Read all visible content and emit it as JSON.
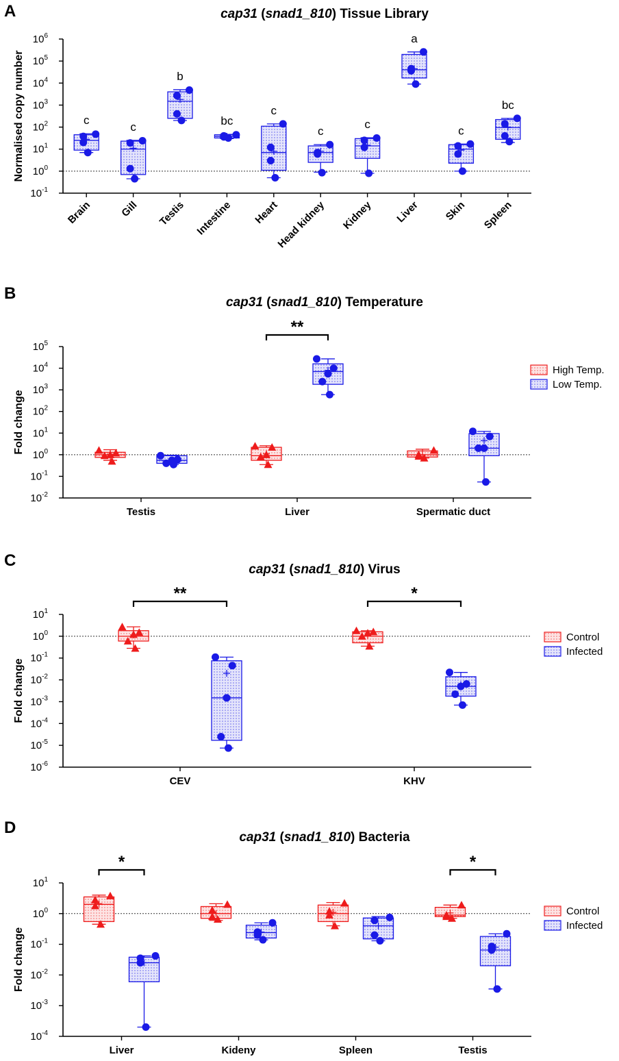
{
  "figure": {
    "panel_labels": [
      "A",
      "B",
      "C",
      "D"
    ]
  },
  "colors": {
    "red": "#ee1c1c",
    "blue": "#1a1ae6",
    "axis": "#000000"
  },
  "chart_data": [
    {
      "type": "box",
      "panel": "A",
      "title_gene": "cap31",
      "title_id": "snad1_810",
      "title_suffix": "Tissue Library",
      "ylabel": "Normalised copy number",
      "yscale": "log",
      "ylim_exp": [
        -1,
        6
      ],
      "reference_line": 1,
      "categories": [
        "Brain",
        "Gill",
        "Testis",
        "Intestine",
        "Heart",
        "Head kidney",
        "Kidney",
        "Liver",
        "Skin",
        "Spleen"
      ],
      "letters": [
        "c",
        "c",
        "b",
        "bc",
        "c",
        "c",
        "c",
        "a",
        "c",
        "bc"
      ],
      "series": [
        {
          "name": "Tissue",
          "color": "blue",
          "marker": "circle",
          "boxes": [
            {
              "min": 7,
              "q1": 9,
              "median": 25,
              "q3": 45,
              "max": 50,
              "mean": 28,
              "points": [
                7,
                20,
                38,
                48
              ]
            },
            {
              "min": 0.45,
              "q1": 0.7,
              "median": 10,
              "q3": 23,
              "max": 25,
              "mean": 11,
              "points": [
                0.45,
                1.3,
                19,
                24
              ]
            },
            {
              "min": 200,
              "q1": 250,
              "median": 1500,
              "q3": 4000,
              "max": 5000,
              "mean": 1800,
              "points": [
                200,
                400,
                2700,
                4800
              ]
            },
            {
              "min": 30,
              "q1": 32,
              "median": 38,
              "q3": 45,
              "max": 47,
              "mean": 38,
              "points": [
                32,
                36,
                40,
                45
              ]
            },
            {
              "min": 0.5,
              "q1": 1.1,
              "median": 7,
              "q3": 110,
              "max": 140,
              "mean": 8,
              "points": [
                0.5,
                3,
                12,
                140
              ]
            },
            {
              "min": 0.9,
              "q1": 2.5,
              "median": 7,
              "q3": 14,
              "max": 16,
              "mean": 8,
              "points": [
                0.85,
                6,
                7,
                16
              ]
            },
            {
              "min": 0.8,
              "q1": 3.8,
              "median": 14,
              "q3": 30,
              "max": 33,
              "mean": 15,
              "points": [
                0.8,
                12,
                25,
                32
              ]
            },
            {
              "min": 9000,
              "q1": 17000,
              "median": 40000,
              "q3": 200000,
              "max": 260000,
              "mean": 45000,
              "points": [
                9000,
                36000,
                45000,
                260000
              ]
            },
            {
              "min": 1,
              "q1": 2.3,
              "median": 10,
              "q3": 16,
              "max": 17,
              "mean": 9,
              "points": [
                1,
                6,
                14,
                17
              ]
            },
            {
              "min": 20,
              "q1": 28,
              "median": 95,
              "q3": 220,
              "max": 250,
              "mean": 100,
              "points": [
                22,
                40,
                140,
                250
              ]
            }
          ]
        }
      ],
      "significance": []
    },
    {
      "type": "box",
      "panel": "B",
      "title_gene": "cap31",
      "title_id": "snad1_810",
      "title_suffix": "Temperature",
      "ylabel": "Fold change",
      "yscale": "log",
      "ylim_exp": [
        -2,
        5
      ],
      "reference_line": 1,
      "categories": [
        "Testis",
        "Liver",
        "Spermatic duct"
      ],
      "legend": [
        "High Temp.",
        "Low Temp."
      ],
      "series": [
        {
          "name": "High Temp.",
          "color": "red",
          "marker": "triangle",
          "boxes": [
            {
              "min": 0.55,
              "q1": 0.75,
              "median": 1.0,
              "q3": 1.3,
              "max": 1.7,
              "mean": 1.05,
              "points": [
                0.5,
                0.9,
                1.0,
                1.2,
                1.6
              ]
            },
            {
              "min": 0.35,
              "q1": 0.55,
              "median": 0.9,
              "q3": 2.2,
              "max": 2.6,
              "mean": 1.1,
              "points": [
                0.35,
                0.8,
                1.0,
                2.2,
                2.5
              ]
            },
            {
              "min": 0.7,
              "q1": 0.78,
              "median": 1.0,
              "q3": 1.5,
              "max": 1.8,
              "mean": 1.0,
              "points": [
                0.7,
                0.85,
                1.0,
                1.6
              ]
            }
          ]
        },
        {
          "name": "Low Temp.",
          "color": "blue",
          "marker": "circle",
          "boxes": [
            {
              "min": 0.35,
              "q1": 0.4,
              "median": 0.55,
              "q3": 0.9,
              "max": 0.95,
              "mean": 0.55,
              "points": [
                0.35,
                0.4,
                0.55,
                0.6,
                0.9
              ]
            },
            {
              "min": 600,
              "q1": 1800,
              "median": 7000,
              "q3": 16000,
              "max": 27000,
              "mean": 8000,
              "points": [
                600,
                2400,
                5500,
                10000,
                27000
              ]
            },
            {
              "min": 0.055,
              "q1": 0.9,
              "median": 2.0,
              "q3": 9.5,
              "max": 12,
              "mean": 4.5,
              "points": [
                0.055,
                2.0,
                2.0,
                7.0,
                12
              ]
            }
          ]
        }
      ],
      "significance": [
        {
          "between": [
            1,
            1
          ],
          "label": "**"
        }
      ]
    },
    {
      "type": "box",
      "panel": "C",
      "title_gene": "cap31",
      "title_id": "snad1_810",
      "title_suffix": "Virus",
      "ylabel": "Fold change",
      "yscale": "log",
      "ylim_exp": [
        -6,
        1
      ],
      "reference_line": 1,
      "categories": [
        "CEV",
        "KHV"
      ],
      "legend": [
        "Control",
        "Infected"
      ],
      "series": [
        {
          "name": "Control",
          "color": "red",
          "marker": "triangle",
          "boxes": [
            {
              "min": 0.28,
              "q1": 0.6,
              "median": 1.0,
              "q3": 1.8,
              "max": 2.7,
              "mean": 1.15,
              "points": [
                0.28,
                0.6,
                1.2,
                1.5,
                2.7
              ]
            },
            {
              "min": 0.35,
              "q1": 0.5,
              "median": 1.0,
              "q3": 1.6,
              "max": 1.8,
              "mean": 1.1,
              "points": [
                0.35,
                1.0,
                1.4,
                1.6,
                1.8
              ]
            }
          ]
        },
        {
          "name": "Infected",
          "color": "blue",
          "marker": "circle",
          "boxes": [
            {
              "min": 7.5e-06,
              "q1": 1.7e-05,
              "median": 0.0015,
              "q3": 0.075,
              "max": 0.11,
              "mean": 0.02,
              "points": [
                7.5e-06,
                2.5e-05,
                0.0015,
                0.045,
                0.11
              ]
            },
            {
              "min": 0.0007,
              "q1": 0.0018,
              "median": 0.005,
              "q3": 0.014,
              "max": 0.022,
              "mean": 0.006,
              "points": [
                0.0007,
                0.0022,
                0.005,
                0.0065,
                0.022
              ]
            }
          ]
        }
      ],
      "significance": [
        {
          "between": [
            0,
            0
          ],
          "label": "**"
        },
        {
          "between": [
            1,
            1
          ],
          "label": "*"
        }
      ]
    },
    {
      "type": "box",
      "panel": "D",
      "title_gene": "cap31",
      "title_id": "snad1_810",
      "title_suffix": "Bacteria",
      "ylabel": "Fold change",
      "yscale": "log",
      "ylim_exp": [
        -4,
        1
      ],
      "reference_line": 1,
      "categories": [
        "Liver",
        "Kideny",
        "Spleen",
        "Testis"
      ],
      "legend": [
        "Control",
        "Infected"
      ],
      "series": [
        {
          "name": "Control",
          "color": "red",
          "marker": "triangle",
          "boxes": [
            {
              "min": 0.45,
              "q1": 0.55,
              "median": 2.0,
              "q3": 3.5,
              "max": 4.0,
              "mean": 2.1,
              "points": [
                0.45,
                1.8,
                2.8,
                3.8
              ]
            },
            {
              "min": 0.6,
              "q1": 0.7,
              "median": 1.0,
              "q3": 1.7,
              "max": 2.1,
              "mean": 1.0,
              "points": [
                0.65,
                0.8,
                1.3,
                2.0
              ]
            },
            {
              "min": 0.4,
              "q1": 0.55,
              "median": 1.0,
              "q3": 1.9,
              "max": 2.3,
              "mean": 1.1,
              "points": [
                0.4,
                0.9,
                1.2,
                2.2
              ]
            },
            {
              "min": 0.7,
              "q1": 0.8,
              "median": 0.9,
              "q3": 1.6,
              "max": 1.9,
              "mean": 1.05,
              "points": [
                0.7,
                0.8,
                0.9,
                1.9
              ]
            }
          ]
        },
        {
          "name": "Infected",
          "color": "blue",
          "marker": "circle",
          "boxes": [
            {
              "min": 0.0002,
              "q1": 0.006,
              "median": 0.025,
              "q3": 0.038,
              "max": 0.042,
              "mean": 0.025,
              "points": [
                0.0002,
                0.025,
                0.035,
                0.042
              ]
            },
            {
              "min": 0.14,
              "q1": 0.16,
              "median": 0.24,
              "q3": 0.42,
              "max": 0.5,
              "mean": 0.25,
              "points": [
                0.14,
                0.2,
                0.25,
                0.5
              ]
            },
            {
              "min": 0.13,
              "q1": 0.15,
              "median": 0.4,
              "q3": 0.72,
              "max": 0.8,
              "mean": 0.4,
              "points": [
                0.13,
                0.2,
                0.6,
                0.75
              ]
            },
            {
              "min": 0.0035,
              "q1": 0.02,
              "median": 0.065,
              "q3": 0.18,
              "max": 0.22,
              "mean": 0.08,
              "points": [
                0.0035,
                0.065,
                0.085,
                0.22
              ]
            }
          ]
        }
      ],
      "significance": [
        {
          "between": [
            0,
            0
          ],
          "label": "*"
        },
        {
          "between": [
            3,
            3
          ],
          "label": "*"
        }
      ]
    }
  ]
}
